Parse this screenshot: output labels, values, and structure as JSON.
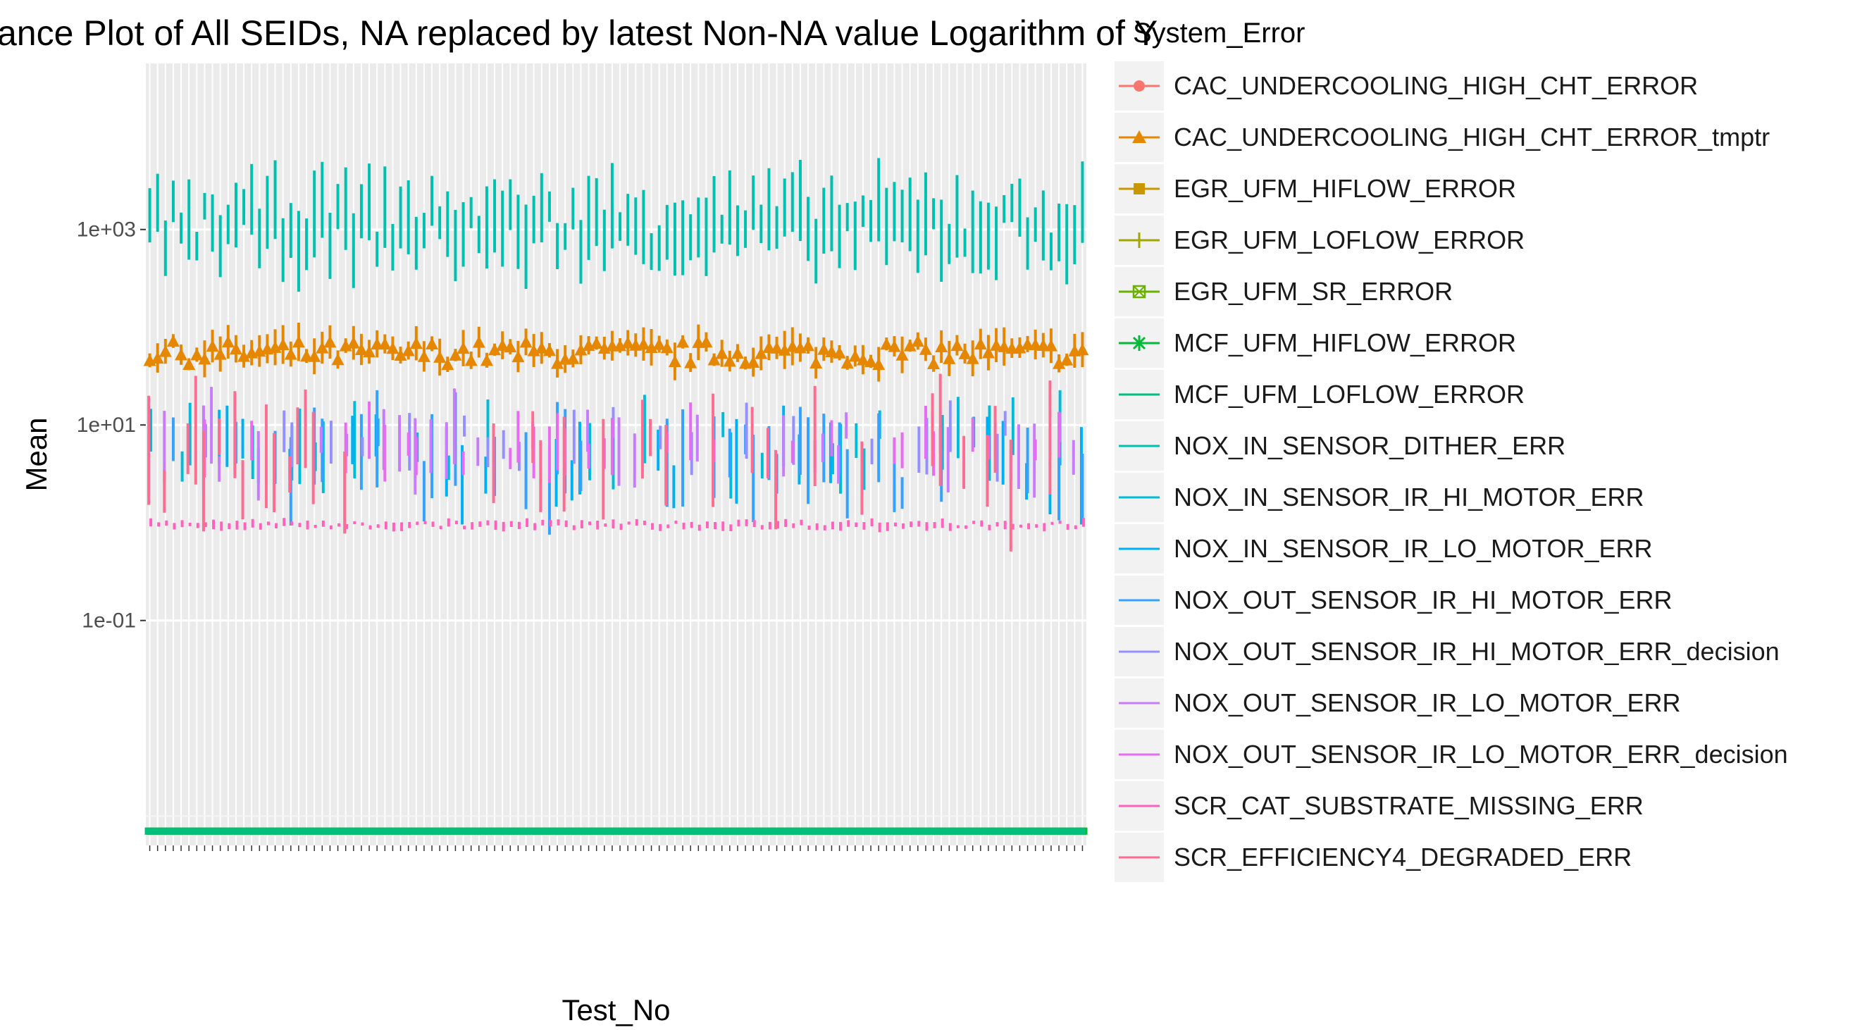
{
  "chart_data": {
    "type": "line",
    "title": "ance Plot of All SEIDs, NA replaced by latest Non-NA value Logarithm of Y",
    "xlabel": "Test_No",
    "ylabel": "Mean",
    "y_scale": "log10",
    "ylim": [
      0.0005,
      50000
    ],
    "y_ticks": [
      "1e-01",
      "1e+01",
      "1e+03"
    ],
    "y_tick_values": [
      0.1,
      10,
      1000
    ],
    "x_categories_count": 120,
    "x_tick_labels_note": "Test_No tick labels are rendered rotated and overlapping and are not individually legible",
    "legend_title": "System_Error",
    "legend_position": "right",
    "grid": true,
    "series": [
      {
        "name": "CAC_UNDERCOOLING_HIGH_CHT_ERROR",
        "color": "#F8766D",
        "marker": "circle",
        "level": 0.0007,
        "spread": 0
      },
      {
        "name": "CAC_UNDERCOOLING_HIGH_CHT_ERROR_tmptr",
        "color": "#E58700",
        "marker": "triangle",
        "level": 55,
        "spread": 0.2
      },
      {
        "name": "EGR_UFM_HIFLOW_ERROR",
        "color": "#C99800",
        "marker": "square",
        "level": 0.0007,
        "spread": 0
      },
      {
        "name": "EGR_UFM_LOFLOW_ERROR",
        "color": "#A3A500",
        "marker": "plus",
        "level": 0.0007,
        "spread": 0
      },
      {
        "name": "EGR_UFM_SR_ERROR",
        "color": "#6BB100",
        "marker": "boxed-x",
        "level": 0.0007,
        "spread": 0
      },
      {
        "name": "MCF_UFM_HIFLOW_ERROR",
        "color": "#00BA38",
        "marker": "asterisk",
        "level": 0.0007,
        "spread": 0
      },
      {
        "name": "MCF_UFM_LOFLOW_ERROR",
        "color": "#00BF7D",
        "marker": "",
        "level": 0.0007,
        "spread": 0
      },
      {
        "name": "NOX_IN_SENSOR_DITHER_ERR",
        "color": "#00C0AF",
        "marker": "",
        "level": 1100,
        "spread": 0.45
      },
      {
        "name": "NOX_IN_SENSOR_IR_HI_MOTOR_ERR",
        "color": "#00BCD8",
        "marker": "",
        "level": 6,
        "spread": 0.4
      },
      {
        "name": "NOX_IN_SENSOR_IR_LO_MOTOR_ERR",
        "color": "#00B0F6",
        "marker": "",
        "level": 4,
        "spread": 0.5
      },
      {
        "name": "NOX_OUT_SENSOR_IR_HI_MOTOR_ERR",
        "color": "#35A2FF",
        "marker": "",
        "level": 4,
        "spread": 0.5
      },
      {
        "name": "NOX_OUT_SENSOR_IR_HI_MOTOR_ERR_decision",
        "color": "#9590FF",
        "marker": "",
        "level": 7,
        "spread": 0.3
      },
      {
        "name": "NOX_OUT_SENSOR_IR_LO_MOTOR_ERR",
        "color": "#C77CFF",
        "marker": "",
        "level": 6,
        "spread": 0.4
      },
      {
        "name": "NOX_OUT_SENSOR_IR_LO_MOTOR_ERR_decision",
        "color": "#E76BF3",
        "marker": "",
        "level": 6,
        "spread": 0.3
      },
      {
        "name": "SCR_CAT_SUBSTRATE_MISSING_ERR",
        "color": "#FF62BC",
        "marker": "",
        "level": 0.95,
        "spread": 0.05
      },
      {
        "name": "SCR_EFFICIENCY4_DEGRADED_ERR",
        "color": "#FF6C91",
        "marker": "",
        "level": 4,
        "spread": 0.6
      }
    ]
  }
}
